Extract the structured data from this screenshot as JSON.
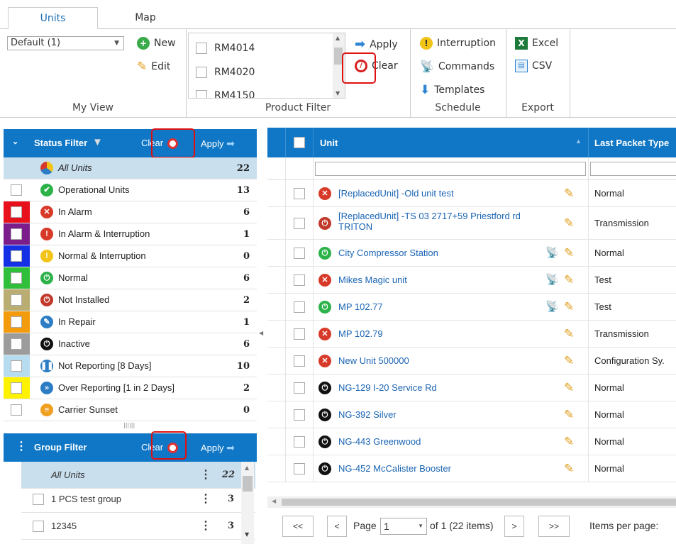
{
  "tabs": [
    "Units",
    "Map"
  ],
  "ribbon": {
    "my_view": {
      "select_value": "Default (1)",
      "new_label": "New",
      "edit_label": "Edit",
      "group_label": "My View"
    },
    "product_filter": {
      "items": [
        "RM4014",
        "RM4020",
        "RM4150"
      ],
      "apply_label": "Apply",
      "clear_label": "Clear",
      "group_label": "Product Filter"
    },
    "schedule": {
      "interruption_label": "Interruption",
      "commands_label": "Commands",
      "templates_label": "Templates",
      "group_label": "Schedule"
    },
    "export": {
      "excel_label": "Excel",
      "csv_label": "CSV",
      "group_label": "Export"
    }
  },
  "status_filter": {
    "title": "Status Filter",
    "clear_label": "Clear",
    "apply_label": "Apply",
    "all_units": {
      "label": "All Units",
      "count": "22"
    },
    "items": [
      {
        "label": "Operational Units",
        "count": "13",
        "swatch": "#ffffff",
        "icon_color": "#2db24a",
        "glyph": "✔"
      },
      {
        "label": "In Alarm",
        "count": "6",
        "swatch": "#e8101a",
        "icon_color": "#d83a2a",
        "glyph": "✕"
      },
      {
        "label": "In Alarm & Interruption",
        "count": "1",
        "swatch": "#7b1e8c",
        "icon_color": "#d83a2a",
        "glyph": "!"
      },
      {
        "label": "Normal & Interruption",
        "count": "0",
        "swatch": "#1531e6",
        "icon_color": "#f2c417",
        "glyph": "!"
      },
      {
        "label": "Normal",
        "count": "6",
        "swatch": "#2fbf3a",
        "icon_color": "#2db24a",
        "glyph": "⏻"
      },
      {
        "label": "Not Installed",
        "count": "2",
        "swatch": "#b9ad72",
        "icon_color": "#c0392b",
        "glyph": "⏻"
      },
      {
        "label": "In Repair",
        "count": "1",
        "swatch": "#f39a0d",
        "icon_color": "#2d7dc4",
        "glyph": "✎"
      },
      {
        "label": "Inactive",
        "count": "6",
        "swatch": "#9c9c9c",
        "icon_color": "#111111",
        "glyph": "⏻"
      },
      {
        "label": "Not Reporting [8 Days]",
        "count": "10",
        "swatch": "#b8dcef",
        "icon_color": "#2d7dc4",
        "glyph": "❚❚"
      },
      {
        "label": "Over Reporting [1 in 2 Days]",
        "count": "2",
        "swatch": "#fff200",
        "icon_color": "#2d7dc4",
        "glyph": "»"
      },
      {
        "label": "Carrier Sunset",
        "count": "0",
        "swatch": "#ffffff",
        "icon_color": "#f0a020",
        "glyph": "≡"
      }
    ]
  },
  "group_filter": {
    "title": "Group Filter",
    "clear_label": "Clear",
    "apply_label": "Apply",
    "all_units": {
      "label": "All Units",
      "count": "22"
    },
    "items": [
      {
        "label": "1 PCS test group",
        "count": "3"
      },
      {
        "label": "12345",
        "count": "3"
      }
    ]
  },
  "grid": {
    "col_unit": "Unit",
    "col_packet": "Last Packet Type",
    "rows": [
      {
        "name": "[ReplacedUnit] -Old unit test",
        "type": "Normal",
        "icon_color": "#d83a2a",
        "glyph": "✕",
        "antenna": false
      },
      {
        "name": "[ReplacedUnit] -TS 03 2717+59 Priestford rd TRITON",
        "type": "Transmission",
        "icon_color": "#c0392b",
        "glyph": "⏻",
        "antenna": false
      },
      {
        "name": "City Compressor Station",
        "type": "Normal",
        "icon_color": "#2db24a",
        "glyph": "⏻",
        "antenna": true
      },
      {
        "name": "Mikes Magic unit",
        "type": "Test",
        "icon_color": "#d83a2a",
        "glyph": "✕",
        "antenna": true
      },
      {
        "name": "MP 102.77",
        "type": "Test",
        "icon_color": "#2db24a",
        "glyph": "⏻",
        "antenna": true
      },
      {
        "name": "MP 102.79",
        "type": "Transmission",
        "icon_color": "#d83a2a",
        "glyph": "✕",
        "antenna": false
      },
      {
        "name": "New Unit 500000",
        "type": "Configuration Sy.",
        "icon_color": "#d83a2a",
        "glyph": "✕",
        "antenna": false
      },
      {
        "name": "NG-129 I-20 Service Rd",
        "type": "Normal",
        "icon_color": "#111111",
        "glyph": "⏻",
        "antenna": false
      },
      {
        "name": "NG-392 Silver",
        "type": "Normal",
        "icon_color": "#111111",
        "glyph": "⏻",
        "antenna": false
      },
      {
        "name": "NG-443 Greenwood",
        "type": "Normal",
        "icon_color": "#111111",
        "glyph": "⏻",
        "antenna": false
      },
      {
        "name": "NG-452 McCalister Booster",
        "type": "Normal",
        "icon_color": "#111111",
        "glyph": "⏻",
        "antenna": false
      }
    ]
  },
  "pager": {
    "first": "<<",
    "prev": "<",
    "page_label": "Page",
    "page_value": "1",
    "of_text": "of 1 (22 items)",
    "next": ">",
    "last": ">>",
    "items_per_page": "Items per page:"
  }
}
